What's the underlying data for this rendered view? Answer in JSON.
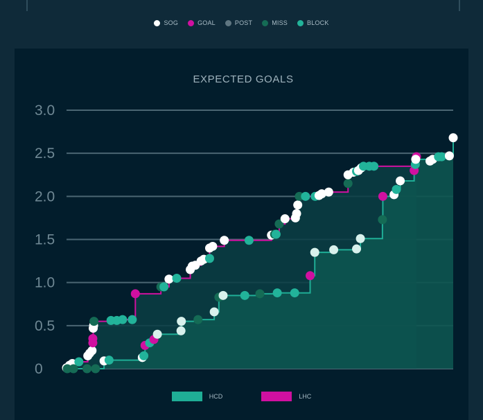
{
  "shot_types": [
    {
      "label": "SOG",
      "color": "#ffffff"
    },
    {
      "label": "GOAL",
      "color": "#d010a0"
    },
    {
      "label": "POST",
      "color": "#5f7681"
    },
    {
      "label": "MISS",
      "color": "#156b55"
    },
    {
      "label": "BLOCK",
      "color": "#22b39a"
    }
  ],
  "teams": [
    {
      "label": "HCD",
      "color": "#1fae96"
    },
    {
      "label": "LHC",
      "color": "#d010a0"
    }
  ],
  "chart_data": {
    "type": "line",
    "title": "EXPECTED GOALS",
    "xlabel": "",
    "ylabel": "",
    "xlim": [
      0,
      100
    ],
    "ylim": [
      0,
      3.0
    ],
    "yticks": [
      0,
      0.5,
      1.0,
      1.5,
      2.0,
      2.5,
      3.0
    ],
    "ytick_labels": [
      "0",
      "0.5",
      "1.0",
      "1.5",
      "2.0",
      "2.5",
      "3.0"
    ],
    "grid": true,
    "series": [
      {
        "name": "LHC",
        "line_color": "#d010a0",
        "points": [
          {
            "x": 0.0,
            "y": 0.01,
            "type": "SOG"
          },
          {
            "x": 0.8,
            "y": 0.04,
            "type": "SOG"
          },
          {
            "x": 1.5,
            "y": 0.06,
            "type": "SOG"
          },
          {
            "x": 3.2,
            "y": 0.08,
            "type": "BLOCK"
          },
          {
            "x": 5.5,
            "y": 0.15,
            "type": "SOG"
          },
          {
            "x": 6.0,
            "y": 0.18,
            "type": "SOG"
          },
          {
            "x": 6.6,
            "y": 0.21,
            "type": "SOG"
          },
          {
            "x": 6.8,
            "y": 0.3,
            "type": "GOAL"
          },
          {
            "x": 6.8,
            "y": 0.35,
            "type": "GOAL"
          },
          {
            "x": 6.9,
            "y": 0.47,
            "type": "SOG"
          },
          {
            "x": 7.0,
            "y": 0.5,
            "type": "SOG"
          },
          {
            "x": 7.1,
            "y": 0.55,
            "type": "MISS"
          },
          {
            "x": 11.5,
            "y": 0.56,
            "type": "BLOCK"
          },
          {
            "x": 13.0,
            "y": 0.56,
            "type": "BLOCK"
          },
          {
            "x": 14.5,
            "y": 0.57,
            "type": "BLOCK"
          },
          {
            "x": 17.0,
            "y": 0.57,
            "type": "BLOCK"
          },
          {
            "x": 17.8,
            "y": 0.87,
            "type": "GOAL"
          },
          {
            "x": 24.4,
            "y": 0.95,
            "type": "MISS"
          },
          {
            "x": 25.2,
            "y": 0.95,
            "type": "BLOCK"
          },
          {
            "x": 26.5,
            "y": 1.04,
            "type": "SOG"
          },
          {
            "x": 28.5,
            "y": 1.05,
            "type": "BLOCK"
          },
          {
            "x": 32.0,
            "y": 1.15,
            "type": "SOG"
          },
          {
            "x": 32.5,
            "y": 1.19,
            "type": "SOG"
          },
          {
            "x": 33.3,
            "y": 1.2,
            "type": "SOG"
          },
          {
            "x": 34.8,
            "y": 1.25,
            "type": "SOG"
          },
          {
            "x": 35.5,
            "y": 1.27,
            "type": "SOG"
          },
          {
            "x": 37.0,
            "y": 1.28,
            "type": "BLOCK"
          },
          {
            "x": 37.0,
            "y": 1.4,
            "type": "SOG"
          },
          {
            "x": 37.8,
            "y": 1.42,
            "type": "SOG"
          },
          {
            "x": 40.8,
            "y": 1.49,
            "type": "SOG"
          },
          {
            "x": 47.2,
            "y": 1.49,
            "type": "BLOCK"
          },
          {
            "x": 53.0,
            "y": 1.55,
            "type": "SOG"
          },
          {
            "x": 53.8,
            "y": 1.56,
            "type": "MISS"
          },
          {
            "x": 54.2,
            "y": 1.56,
            "type": "BLOCK"
          },
          {
            "x": 55.0,
            "y": 1.68,
            "type": "MISS"
          },
          {
            "x": 56.5,
            "y": 1.74,
            "type": "SOG"
          },
          {
            "x": 59.2,
            "y": 1.75,
            "type": "SOG"
          },
          {
            "x": 59.5,
            "y": 1.8,
            "type": "SOG"
          },
          {
            "x": 59.8,
            "y": 1.9,
            "type": "SOG"
          },
          {
            "x": 60.2,
            "y": 2.0,
            "type": "MISS"
          },
          {
            "x": 61.8,
            "y": 2.0,
            "type": "BLOCK"
          },
          {
            "x": 64.3,
            "y": 2.0,
            "type": "BLOCK"
          },
          {
            "x": 65.3,
            "y": 2.01,
            "type": "SOG"
          },
          {
            "x": 66.0,
            "y": 2.03,
            "type": "SOG"
          },
          {
            "x": 67.8,
            "y": 2.05,
            "type": "SOG"
          },
          {
            "x": 72.8,
            "y": 2.15,
            "type": "MISS"
          },
          {
            "x": 72.8,
            "y": 2.25,
            "type": "SOG"
          },
          {
            "x": 74.2,
            "y": 2.28,
            "type": "SOG"
          },
          {
            "x": 75.0,
            "y": 2.29,
            "type": "BLOCK"
          },
          {
            "x": 75.5,
            "y": 2.3,
            "type": "SOG"
          },
          {
            "x": 76.2,
            "y": 2.33,
            "type": "SOG"
          },
          {
            "x": 76.8,
            "y": 2.35,
            "type": "BLOCK"
          },
          {
            "x": 78.3,
            "y": 2.35,
            "type": "BLOCK"
          },
          {
            "x": 79.5,
            "y": 2.35,
            "type": "BLOCK"
          },
          {
            "x": 90.5,
            "y": 2.46,
            "type": "GOAL"
          }
        ]
      },
      {
        "name": "HCD",
        "line_color": "#1fae96",
        "points": [
          {
            "x": 0.2,
            "y": 0.0,
            "type": "MISS"
          },
          {
            "x": 1.8,
            "y": 0.0,
            "type": "MISS"
          },
          {
            "x": 5.3,
            "y": 0.0,
            "type": "MISS"
          },
          {
            "x": 7.5,
            "y": 0.0,
            "type": "MISS"
          },
          {
            "x": 9.7,
            "y": 0.09,
            "type": "SOG"
          },
          {
            "x": 11.0,
            "y": 0.1,
            "type": "BLOCK"
          },
          {
            "x": 19.6,
            "y": 0.13,
            "type": "SOG"
          },
          {
            "x": 20.0,
            "y": 0.15,
            "type": "BLOCK"
          },
          {
            "x": 20.3,
            "y": 0.27,
            "type": "GOAL"
          },
          {
            "x": 21.5,
            "y": 0.3,
            "type": "BLOCK"
          },
          {
            "x": 22.6,
            "y": 0.34,
            "type": "GOAL"
          },
          {
            "x": 23.5,
            "y": 0.4,
            "type": "SOG"
          },
          {
            "x": 29.6,
            "y": 0.44,
            "type": "SOG"
          },
          {
            "x": 29.7,
            "y": 0.55,
            "type": "SOG"
          },
          {
            "x": 34.0,
            "y": 0.57,
            "type": "MISS"
          },
          {
            "x": 38.2,
            "y": 0.66,
            "type": "SOG"
          },
          {
            "x": 39.4,
            "y": 0.83,
            "type": "MISS"
          },
          {
            "x": 40.5,
            "y": 0.85,
            "type": "SOG"
          },
          {
            "x": 46.1,
            "y": 0.85,
            "type": "BLOCK"
          },
          {
            "x": 50.0,
            "y": 0.87,
            "type": "MISS"
          },
          {
            "x": 54.5,
            "y": 0.88,
            "type": "BLOCK"
          },
          {
            "x": 59.0,
            "y": 0.88,
            "type": "BLOCK"
          },
          {
            "x": 63.0,
            "y": 1.08,
            "type": "GOAL"
          },
          {
            "x": 64.2,
            "y": 1.35,
            "type": "SOG"
          },
          {
            "x": 69.1,
            "y": 1.38,
            "type": "SOG"
          },
          {
            "x": 75.0,
            "y": 1.39,
            "type": "SOG"
          },
          {
            "x": 76.0,
            "y": 1.51,
            "type": "SOG"
          },
          {
            "x": 81.7,
            "y": 1.73,
            "type": "MISS"
          },
          {
            "x": 81.8,
            "y": 2.0,
            "type": "GOAL"
          },
          {
            "x": 84.7,
            "y": 2.02,
            "type": "SOG"
          },
          {
            "x": 85.3,
            "y": 2.08,
            "type": "BLOCK"
          },
          {
            "x": 86.3,
            "y": 2.18,
            "type": "SOG"
          },
          {
            "x": 89.9,
            "y": 2.3,
            "type": "GOAL"
          },
          {
            "x": 90.2,
            "y": 2.37,
            "type": "BLOCK"
          },
          {
            "x": 90.3,
            "y": 2.43,
            "type": "SOG"
          },
          {
            "x": 94.0,
            "y": 2.41,
            "type": "SOG"
          },
          {
            "x": 94.7,
            "y": 2.43,
            "type": "SOG"
          },
          {
            "x": 96.2,
            "y": 2.46,
            "type": "BLOCK"
          },
          {
            "x": 97.0,
            "y": 2.46,
            "type": "BLOCK"
          },
          {
            "x": 99.0,
            "y": 2.47,
            "type": "SOG"
          },
          {
            "x": 100.0,
            "y": 2.68,
            "type": "SOG"
          }
        ]
      }
    ]
  }
}
